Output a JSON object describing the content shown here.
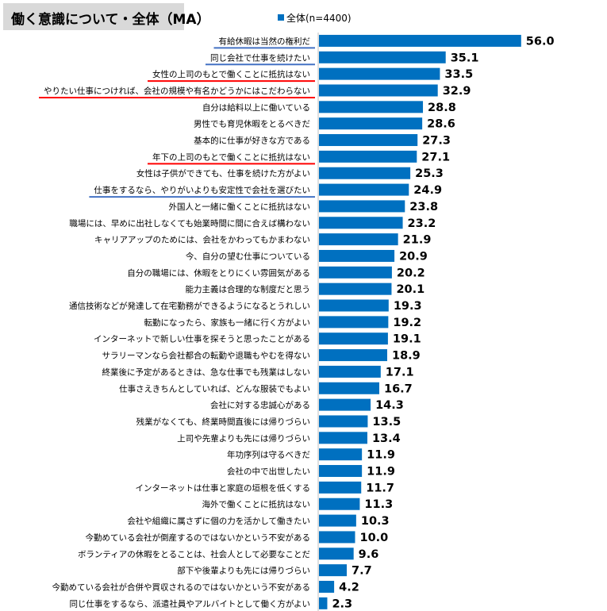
{
  "chart_data": {
    "type": "bar",
    "orientation": "horizontal",
    "title": "働く意識について・全体（MA）",
    "legend": {
      "position": "top",
      "entries": [
        "全体(n=4400)"
      ]
    },
    "series": [
      {
        "name": "全体(n=4400)",
        "color": "#0070c0",
        "values": [
          56.0,
          35.1,
          33.5,
          32.9,
          28.8,
          28.6,
          27.3,
          27.1,
          25.3,
          24.9,
          23.8,
          23.2,
          21.9,
          20.9,
          20.2,
          20.1,
          19.3,
          19.2,
          19.1,
          18.9,
          17.1,
          16.7,
          14.3,
          13.5,
          13.4,
          11.9,
          11.9,
          11.7,
          11.3,
          10.3,
          10.0,
          9.6,
          7.7,
          4.2,
          2.3
        ]
      }
    ],
    "value_labels": [
      "56.0",
      "35.1",
      "33.5",
      "32.9",
      "28.8",
      "28.6",
      "27.3",
      "27.1",
      "25.3",
      "24.9",
      "23.8",
      "23.2",
      "21.9",
      "20.9",
      "20.2",
      "20.1",
      "19.3",
      "19.2",
      "19.1",
      "18.9",
      "17.1",
      "16.7",
      "14.3",
      "13.5",
      "13.4",
      "11.9",
      "11.9",
      "11.7",
      "11.3",
      "10.3",
      "10.0",
      "9.6",
      "7.7",
      "4.2",
      "2.3"
    ],
    "categories": [
      "有給休暇は当然の権利だ",
      "同じ会社で仕事を続けたい",
      "女性の上司のもとで働くことに抵抗はない",
      "やりたい仕事につければ、会社の規模や有名かどうかにはこだわらない",
      "自分は給料以上に働いている",
      "男性でも育児休暇をとるべきだ",
      "基本的に仕事が好きな方である",
      "年下の上司のもとで働くことに抵抗はない",
      "女性は子供ができても、仕事を続けた方がよい",
      "仕事をするなら、やりがいよりも安定性で会社を選びたい",
      "外国人と一緒に働くことに抵抗はない",
      "職場には、早めに出社しなくても始業時間に間に合えば構わない",
      "キャリアアップのためには、会社をかわってもかまわない",
      "今、自分の望む仕事についている",
      "自分の職場には、休暇をとりにくい雰囲気がある",
      "能力主義は合理的な制度だと思う",
      "通信技術などが発達して在宅勤務ができるようになるとうれしい",
      "転勤になったら、家族も一緒に行く方がよい",
      "インターネットで新しい仕事を探そうと思ったことがある",
      "サラリーマンなら会社都合の転勤や退職もやむを得ない",
      "終業後に予定があるときは、急な仕事でも残業はしない",
      "仕事さえきちんとしていれば、どんな服装でもよい",
      "会社に対する忠誠心がある",
      "残業がなくても、終業時間直後には帰りづらい",
      "上司や先輩よりも先には帰りづらい",
      "年功序列は守るべきだ",
      "会社の中で出世したい",
      "インターネットは仕事と家庭の垣根を低くする",
      "海外で働くことに抵抗はない",
      "会社や組織に属さずに個の力を活かして働きたい",
      "今勤めている会社が倒産するのではないかという不安がある",
      "ボランティアの休暇をとることは、社会人として必要なことだ",
      "部下や後輩よりも先には帰りづらい",
      "今勤めている会社が合併や買収されるのではないかという不安がある",
      "同じ仕事をするなら、派遣社員やアルバイトとして働く方がよい"
    ],
    "underlines": [
      {
        "index": 0,
        "color": "#4472c4"
      },
      {
        "index": 1,
        "color": "#4472c4"
      },
      {
        "index": 2,
        "color": "#ff0000"
      },
      {
        "index": 3,
        "color": "#ff0000"
      },
      {
        "index": 7,
        "color": "#ff0000"
      },
      {
        "index": 9,
        "color": "#4472c4"
      }
    ],
    "xlim": [
      0,
      60
    ],
    "grid": false
  }
}
